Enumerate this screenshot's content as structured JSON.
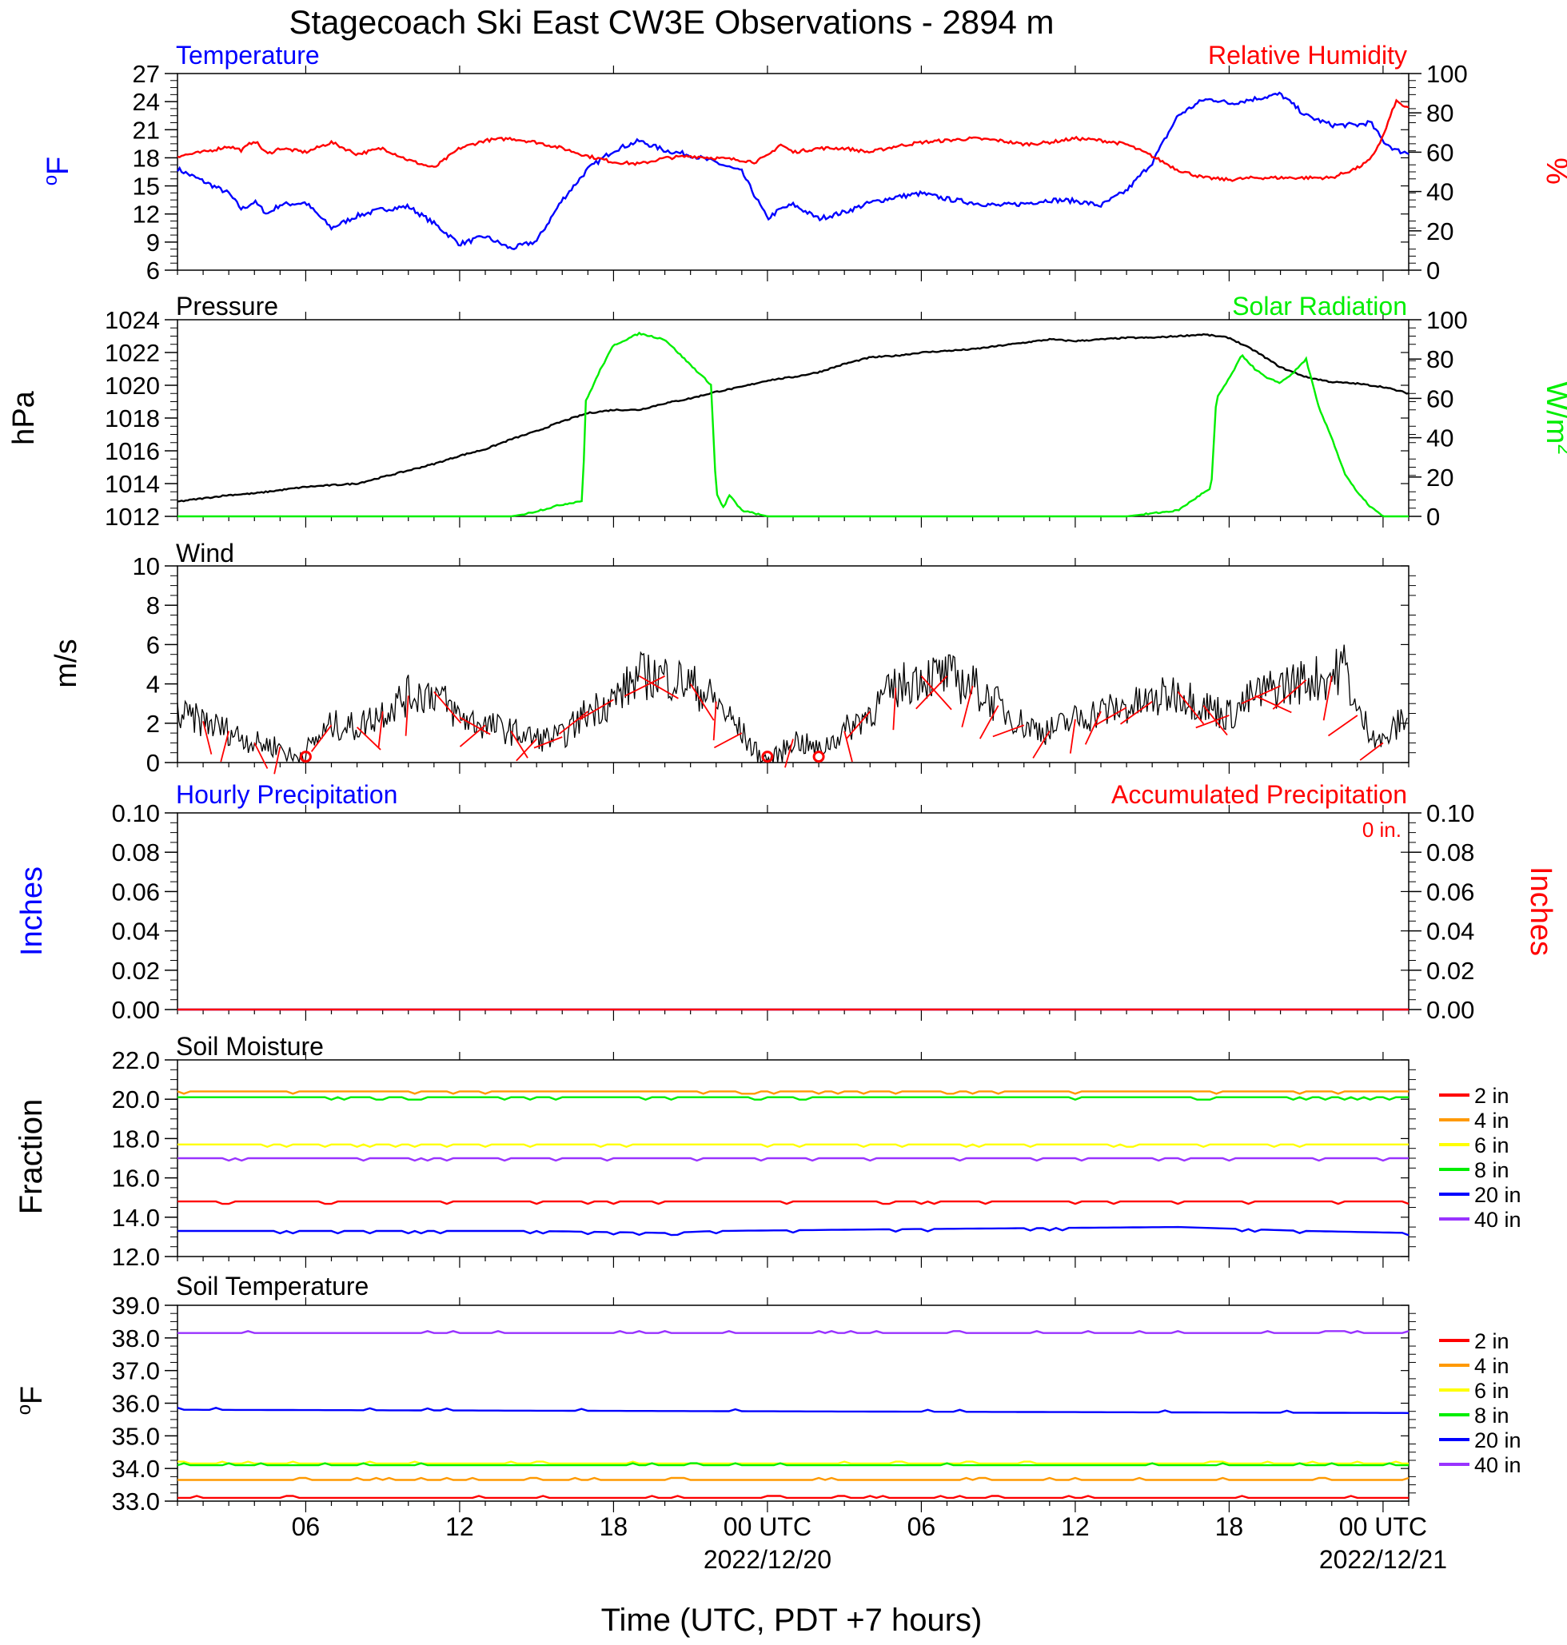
{
  "title": "Stagecoach Ski East CW3E Observations - 2894 m",
  "xaxis": {
    "label": "Time (UTC, PDT +7 hours)",
    "ticks": [
      {
        "hour": 6,
        "label": "06",
        "date": ""
      },
      {
        "hour": 12,
        "label": "12",
        "date": ""
      },
      {
        "hour": 18,
        "label": "18",
        "date": ""
      },
      {
        "hour": 24,
        "label": "00 UTC",
        "date": "2022/12/20"
      },
      {
        "hour": 30,
        "label": "06",
        "date": ""
      },
      {
        "hour": 36,
        "label": "12",
        "date": ""
      },
      {
        "hour": 42,
        "label": "18",
        "date": ""
      },
      {
        "hour": 48,
        "label": "00 UTC",
        "date": "2022/12/21"
      }
    ]
  },
  "colors": {
    "temperature": "#0000ff",
    "humidity": "#ff0000",
    "pressure": "#000000",
    "solar": "#00ee00",
    "wind": "#000000",
    "barb": "#ff0000"
  },
  "legend_depths": [
    "2 in",
    "4 in",
    "6 in",
    "8 in",
    "20 in",
    "40 in"
  ],
  "legend_colors": [
    "#ff0000",
    "#ff9900",
    "#ffff00",
    "#00ee00",
    "#0000ff",
    "#9933ff"
  ],
  "chart_data": [
    {
      "type": "line",
      "panel": "temperature_humidity",
      "title_left": "Temperature",
      "title_right": "Relative Humidity",
      "ylabel_left": "oF",
      "ylabel_right": "%",
      "x_hours_range": [
        1,
        49
      ],
      "ylim_left": [
        6,
        27
      ],
      "yticks_left": [
        "6",
        "9",
        "12",
        "15",
        "18",
        "21",
        "24",
        "27"
      ],
      "ylim_right": [
        0,
        100
      ],
      "yticks_right": [
        "0",
        "20",
        "40",
        "60",
        "80",
        "100"
      ],
      "series": [
        {
          "name": "Temperature",
          "axis": "left",
          "x": [
            1,
            2,
            3,
            3.5,
            4,
            4.5,
            5,
            6,
            7,
            8,
            9,
            10,
            11,
            12,
            13,
            14,
            15,
            16,
            17,
            18,
            19,
            20,
            21,
            22,
            23,
            23.5,
            24,
            24.5,
            25,
            26,
            27,
            28,
            29,
            30,
            31,
            32,
            33,
            34,
            35,
            36,
            37,
            38,
            39,
            40,
            41,
            41.5,
            42,
            43,
            44,
            45,
            46,
            47,
            47.5,
            48,
            48.5,
            49
          ],
          "y": [
            16.8,
            15.5,
            14.2,
            12.5,
            13.3,
            12,
            13,
            13.2,
            10.5,
            11.8,
            12.5,
            12.8,
            11,
            8.8,
            9.6,
            8.3,
            9.1,
            13.5,
            16.8,
            18.8,
            19.8,
            18.8,
            18.3,
            17.5,
            16.5,
            14,
            11.5,
            12.5,
            13,
            11.5,
            12.2,
            13.2,
            13.8,
            14.2,
            13.6,
            13.2,
            12.9,
            13.1,
            13.5,
            13.4,
            12.9,
            14.5,
            17.5,
            22.5,
            24.2,
            24.2,
            23.8,
            24.3,
            24.8,
            22.5,
            21.5,
            21.5,
            21.8,
            19.8,
            18.8,
            18.5
          ]
        },
        {
          "name": "Relative Humidity",
          "axis": "right",
          "x": [
            1,
            2,
            3,
            3.5,
            4,
            4.5,
            5,
            6,
            7,
            8,
            9,
            10,
            11,
            12,
            13,
            14,
            15,
            16,
            17,
            18,
            19,
            20,
            21,
            22,
            23,
            23.5,
            24,
            24.5,
            25,
            26,
            27,
            28,
            29,
            30,
            31,
            32,
            33,
            34,
            35,
            36,
            37,
            38,
            39,
            40,
            41,
            42,
            43,
            44,
            45,
            46,
            47,
            47.5,
            48,
            48.5,
            49
          ],
          "y": [
            58,
            60,
            63,
            61,
            66,
            59,
            62,
            60,
            65,
            59,
            62,
            56,
            52,
            62,
            66,
            67,
            65,
            62,
            58,
            55,
            54,
            57,
            58,
            57,
            56,
            55,
            58,
            64,
            60,
            62,
            62,
            60,
            63,
            65,
            66,
            67,
            66,
            64,
            65,
            67,
            66,
            64,
            58,
            51,
            47,
            46,
            47,
            47,
            47,
            47,
            52,
            56,
            68,
            86,
            82
          ]
        }
      ]
    },
    {
      "type": "line",
      "panel": "pressure_solar",
      "title_left": "Pressure",
      "title_right": "Solar Radiation",
      "ylabel_left": "hPa",
      "ylabel_right": "W/m2",
      "ylim_left": [
        1012,
        1024
      ],
      "yticks_left": [
        "1012",
        "1014",
        "1016",
        "1018",
        "1020",
        "1022",
        "1024"
      ],
      "ylim_right": [
        0,
        100
      ],
      "yticks_right": [
        "0",
        "20",
        "40",
        "60",
        "80",
        "100"
      ],
      "series": [
        {
          "name": "Pressure",
          "axis": "left",
          "x": [
            1,
            2,
            3,
            4,
            5,
            6,
            7,
            8,
            9,
            10,
            11,
            12,
            13,
            14,
            15,
            16,
            17,
            18,
            19,
            20,
            21,
            22,
            23,
            24,
            25,
            26,
            27,
            28,
            29,
            30,
            31,
            32,
            33,
            34,
            35,
            36,
            37,
            38,
            39,
            40,
            41,
            42,
            43,
            44,
            45,
            46,
            47,
            48,
            49
          ],
          "y": [
            1012.9,
            1013.1,
            1013.3,
            1013.4,
            1013.6,
            1013.8,
            1013.9,
            1014,
            1014.4,
            1014.8,
            1015.2,
            1015.7,
            1016.1,
            1016.7,
            1017.2,
            1017.8,
            1018.3,
            1018.5,
            1018.5,
            1018.9,
            1019.2,
            1019.6,
            1019.9,
            1020.3,
            1020.5,
            1020.8,
            1021.3,
            1021.7,
            1021.8,
            1022,
            1022.1,
            1022.2,
            1022.4,
            1022.6,
            1022.8,
            1022.7,
            1022.8,
            1022.9,
            1022.9,
            1023,
            1023.1,
            1022.9,
            1022.1,
            1021.1,
            1020.5,
            1020.2,
            1020.1,
            1019.9,
            1019.5
          ]
        },
        {
          "name": "Solar Radiation",
          "axis": "right",
          "x": [
            1,
            14,
            14.5,
            16,
            16.8,
            16.9,
            17.5,
            18,
            19,
            20,
            21,
            21.8,
            22,
            22.3,
            22.5,
            23,
            24,
            25,
            28,
            33,
            38,
            40,
            41,
            41.3,
            41.5,
            42,
            42.5,
            43,
            43.5,
            44,
            44.5,
            45,
            45.5,
            46,
            46.5,
            47,
            47.5,
            48,
            49
          ],
          "y": [
            0,
            0,
            1,
            6,
            8,
            58,
            75,
            87,
            93,
            90,
            77,
            67,
            12,
            4,
            11,
            3,
            0,
            0,
            0,
            0,
            0,
            3,
            12,
            14,
            60,
            70,
            82,
            75,
            70,
            68,
            73,
            80,
            55,
            40,
            22,
            12,
            5,
            0,
            0
          ]
        }
      ]
    },
    {
      "type": "line",
      "panel": "wind",
      "title_left": "Wind",
      "ylabel_left": "m/s",
      "ylim_left": [
        0,
        10
      ],
      "yticks_left": [
        "0",
        "2",
        "4",
        "6",
        "8",
        "10"
      ],
      "series": [
        {
          "name": "Wind",
          "axis": "left",
          "x": [
            1,
            2,
            3,
            4,
            5,
            5.5,
            6,
            7,
            8,
            9,
            10,
            11,
            12,
            13,
            14,
            15,
            16,
            17,
            18,
            19,
            20,
            21,
            22,
            23,
            23.5,
            24,
            24.5,
            25,
            26,
            27,
            28,
            29,
            30,
            31,
            32,
            33,
            34,
            35,
            36,
            37,
            38,
            39,
            40,
            41,
            42,
            43,
            44,
            45,
            46,
            46.5,
            47,
            48,
            49
          ],
          "y": [
            2.4,
            2.1,
            1.6,
            1.0,
            0.8,
            0.2,
            0.6,
            1.9,
            1.8,
            2.6,
            3.4,
            3.6,
            2.3,
            1.9,
            1.6,
            1.2,
            1.3,
            2.6,
            3.2,
            4.4,
            4.4,
            4.0,
            3.1,
            1.5,
            0.6,
            0.1,
            0.4,
            1.2,
            0.6,
            1.6,
            2.6,
            3.8,
            4.4,
            4.4,
            3.9,
            2.9,
            1.9,
            1.6,
            2.2,
            2.6,
            2.8,
            3.1,
            3.6,
            2.9,
            2.4,
            3.4,
            3.9,
            4.2,
            4.4,
            5.0,
            2.4,
            1.0,
            2.6
          ]
        }
      ]
    },
    {
      "type": "line",
      "panel": "precipitation",
      "title_left": "Hourly Precipitation",
      "title_right": "Accumulated Precipitation",
      "annotation": "0 in.",
      "ylabel_left": "Inches",
      "ylabel_right": "Inches",
      "ylim_left": [
        0,
        0.1
      ],
      "yticks_left": [
        "0.00",
        "0.02",
        "0.04",
        "0.06",
        "0.08",
        "0.10"
      ],
      "ylim_right": [
        0,
        0.1
      ],
      "yticks_right": [
        "0.00",
        "0.02",
        "0.04",
        "0.06",
        "0.08",
        "0.10"
      ],
      "series": [
        {
          "name": "Hourly Precipitation",
          "axis": "left",
          "x": [
            1,
            49
          ],
          "y": [
            0,
            0
          ]
        },
        {
          "name": "Accumulated Precipitation",
          "axis": "right",
          "x": [
            1,
            49
          ],
          "y": [
            0,
            0
          ]
        }
      ]
    },
    {
      "type": "line",
      "panel": "soil_moisture",
      "title_left": "Soil Moisture",
      "ylabel_left": "Fraction",
      "ylim_left": [
        12,
        22
      ],
      "yticks_left": [
        "12.0",
        "14.0",
        "16.0",
        "18.0",
        "20.0",
        "22.0"
      ],
      "series": [
        {
          "name": "2 in",
          "axis": "left",
          "x": [
            1,
            49
          ],
          "y": [
            14.8,
            14.8
          ]
        },
        {
          "name": "4 in",
          "axis": "left",
          "x": [
            1,
            49
          ],
          "y": [
            20.4,
            20.4
          ]
        },
        {
          "name": "6 in",
          "axis": "left",
          "x": [
            1,
            49
          ],
          "y": [
            17.7,
            17.7
          ]
        },
        {
          "name": "8 in",
          "axis": "left",
          "x": [
            1,
            49
          ],
          "y": [
            20.1,
            20.1
          ]
        },
        {
          "name": "20 in",
          "axis": "left",
          "x": [
            1,
            15,
            20,
            22,
            30,
            40,
            45,
            49
          ],
          "y": [
            13.3,
            13.3,
            13.2,
            13.3,
            13.4,
            13.5,
            13.3,
            13.2
          ]
        },
        {
          "name": "40 in",
          "axis": "left",
          "x": [
            1,
            49
          ],
          "y": [
            17.0,
            17.0
          ]
        }
      ]
    },
    {
      "type": "line",
      "panel": "soil_temperature",
      "title_left": "Soil Temperature",
      "ylabel_left": "oF",
      "ylim_left": [
        33,
        39
      ],
      "yticks_left": [
        "33.0",
        "34.0",
        "35.0",
        "36.0",
        "37.0",
        "38.0",
        "39.0"
      ],
      "series": [
        {
          "name": "2 in",
          "axis": "left",
          "x": [
            1,
            49
          ],
          "y": [
            33.1,
            33.1
          ]
        },
        {
          "name": "4 in",
          "axis": "left",
          "x": [
            1,
            49
          ],
          "y": [
            33.65,
            33.65
          ]
        },
        {
          "name": "6 in",
          "axis": "left",
          "x": [
            1,
            49
          ],
          "y": [
            34.15,
            34.15
          ]
        },
        {
          "name": "8 in",
          "axis": "left",
          "x": [
            1,
            49
          ],
          "y": [
            34.1,
            34.1
          ]
        },
        {
          "name": "20 in",
          "axis": "left",
          "x": [
            1,
            49
          ],
          "y": [
            35.8,
            35.7
          ]
        },
        {
          "name": "40 in",
          "axis": "left",
          "x": [
            1,
            49
          ],
          "y": [
            38.15,
            38.15
          ]
        }
      ]
    }
  ]
}
